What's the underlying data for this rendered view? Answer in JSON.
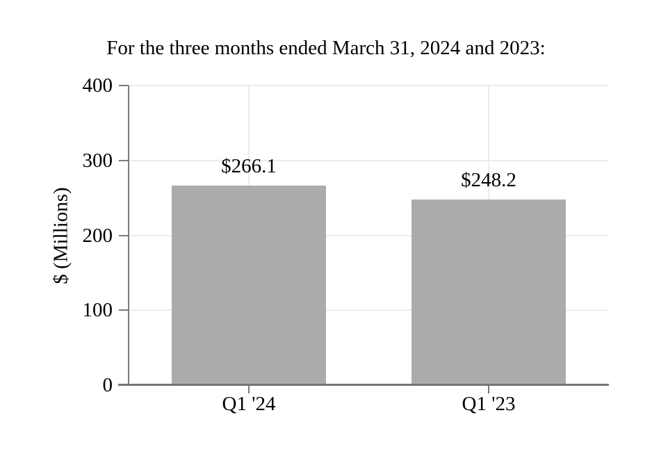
{
  "header": {
    "title": "For the three months ended March 31, 2024 and 2023:"
  },
  "chart_data": {
    "type": "bar",
    "title": "For the three months ended March 31, 2024 and 2023:",
    "categories": [
      "Q1 '24",
      "Q1 '23"
    ],
    "values": [
      266.1,
      248.2
    ],
    "data_labels": [
      "$266.1",
      "$248.2"
    ],
    "xlabel": "",
    "ylabel": "$ (Millions)",
    "ylim": [
      0,
      400
    ],
    "yticks": [
      0,
      100,
      200,
      300,
      400
    ],
    "grid": true,
    "legend_position": "none",
    "colors": {
      "bar": "#ababab",
      "axis": "#7a7a7a",
      "x_axis": "#757575",
      "grid": "#ececec",
      "text": "#000000",
      "background": "#ffffff"
    }
  }
}
